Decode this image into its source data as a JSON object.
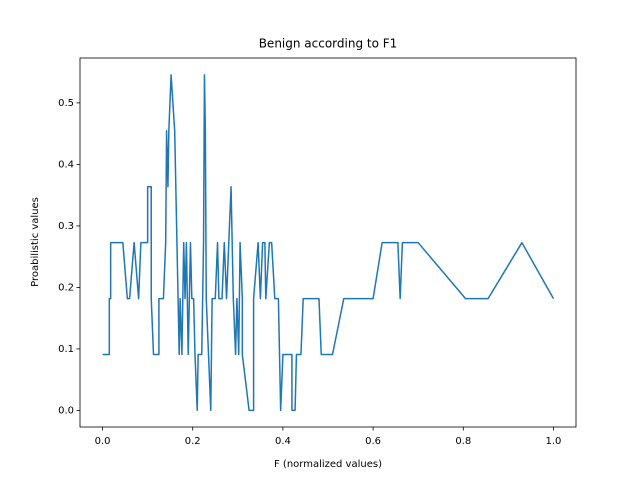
{
  "chart_data": {
    "type": "line",
    "title": "Benign according to F1",
    "xlabel": "F (normalized values)",
    "ylabel": "Proabilistic values",
    "x": [
      0,
      0.015,
      0.015,
      0.018,
      0.018,
      0.04,
      0.045,
      0.055,
      0.06,
      0.07,
      0.08,
      0.085,
      0.1,
      0.1,
      0.108,
      0.108,
      0.113,
      0.125,
      0.125,
      0.135,
      0.14,
      0.142,
      0.145,
      0.147,
      0.152,
      0.16,
      0.165,
      0.17,
      0.172,
      0.176,
      0.18,
      0.183,
      0.186,
      0.19,
      0.195,
      0.198,
      0.202,
      0.205,
      0.21,
      0.212,
      0.22,
      0.224,
      0.226,
      0.228,
      0.23,
      0.235,
      0.24,
      0.243,
      0.25,
      0.255,
      0.258,
      0.265,
      0.27,
      0.275,
      0.28,
      0.285,
      0.29,
      0.295,
      0.298,
      0.302,
      0.305,
      0.31,
      0.31,
      0.325,
      0.335,
      0.335,
      0.345,
      0.35,
      0.355,
      0.36,
      0.362,
      0.37,
      0.375,
      0.382,
      0.39,
      0.395,
      0.4,
      0.42,
      0.42,
      0.427,
      0.43,
      0.44,
      0.445,
      0.48,
      0.485,
      0.51,
      0.535,
      0.6,
      0.62,
      0.655,
      0.66,
      0.665,
      0.7,
      0.805,
      0.855,
      0.93,
      1.0
    ],
    "series": [
      {
        "name": "Benign",
        "color": "#1f77b4",
        "values": [
          0.0909,
          0.0909,
          0.1818,
          0.1818,
          0.2727,
          0.2727,
          0.2727,
          0.1818,
          0.1818,
          0.2727,
          0.1818,
          0.2727,
          0.2727,
          0.3636,
          0.3636,
          0.1818,
          0.0909,
          0.0909,
          0.1818,
          0.1818,
          0.2727,
          0.4545,
          0.3636,
          0.4545,
          0.5455,
          0.4545,
          0.2727,
          0.0909,
          0.1818,
          0.0909,
          0.2727,
          0.1818,
          0.2727,
          0.0909,
          0.2727,
          0.1818,
          0.1818,
          0.0909,
          0,
          0.0909,
          0.0909,
          0.2727,
          0.5455,
          0.4545,
          0.1818,
          0.0909,
          0,
          0.1818,
          0.1818,
          0.2727,
          0.1818,
          0.1818,
          0.2727,
          0.1818,
          0.2727,
          0.3636,
          0.1818,
          0.0909,
          0.1818,
          0.0909,
          0.2727,
          0.1818,
          0.0909,
          0,
          0,
          0.1818,
          0.2727,
          0.1818,
          0.2727,
          0.2727,
          0.1818,
          0.2727,
          0.2727,
          0.1818,
          0.1818,
          0,
          0.0909,
          0.0909,
          0,
          0,
          0.0909,
          0.0909,
          0.1818,
          0.1818,
          0.0909,
          0.0909,
          0.1818,
          0.1818,
          0.2727,
          0.2727,
          0.1818,
          0.2727,
          0.2727,
          0.1818,
          0.1818,
          0.2727,
          0.1818
        ]
      }
    ],
    "xlim": [
      -0.05,
      1.05
    ],
    "ylim": [
      -0.027,
      0.573
    ],
    "xticks": [
      {
        "value": 0,
        "label": "0.0"
      },
      0.2,
      0.4,
      0.6,
      0.8,
      {
        "value": 1,
        "label": "1.0"
      }
    ],
    "yticks": [
      {
        "value": 0,
        "label": "0.0"
      },
      0.1,
      0.2,
      0.3,
      0.4,
      0.5
    ]
  }
}
